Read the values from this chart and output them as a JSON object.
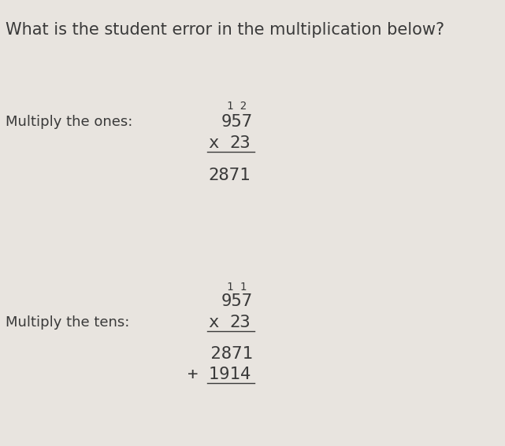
{
  "title": "What is the student error in the multiplication below?",
  "title_fontsize": 15,
  "bg_color": "#e8e4df",
  "text_color": "#3a3a3a",
  "carry_color": "#3a3a3a",
  "label_ones": "Multiply the ones:",
  "label_tens": "Multiply the tens:",
  "label_fontsize": 13,
  "math_fontsize": 16,
  "carry_fontsize": 10,
  "ones_carry": "1 2",
  "ones_num": "957",
  "ones_mult_x": "x",
  "ones_mult_num": "23",
  "ones_result": "2871",
  "tens_carry": "1 1",
  "tens_num": "957",
  "tens_mult_x": "x",
  "tens_mult_num": "23",
  "tens_row1": "2871",
  "tens_row2": "+ 1914"
}
